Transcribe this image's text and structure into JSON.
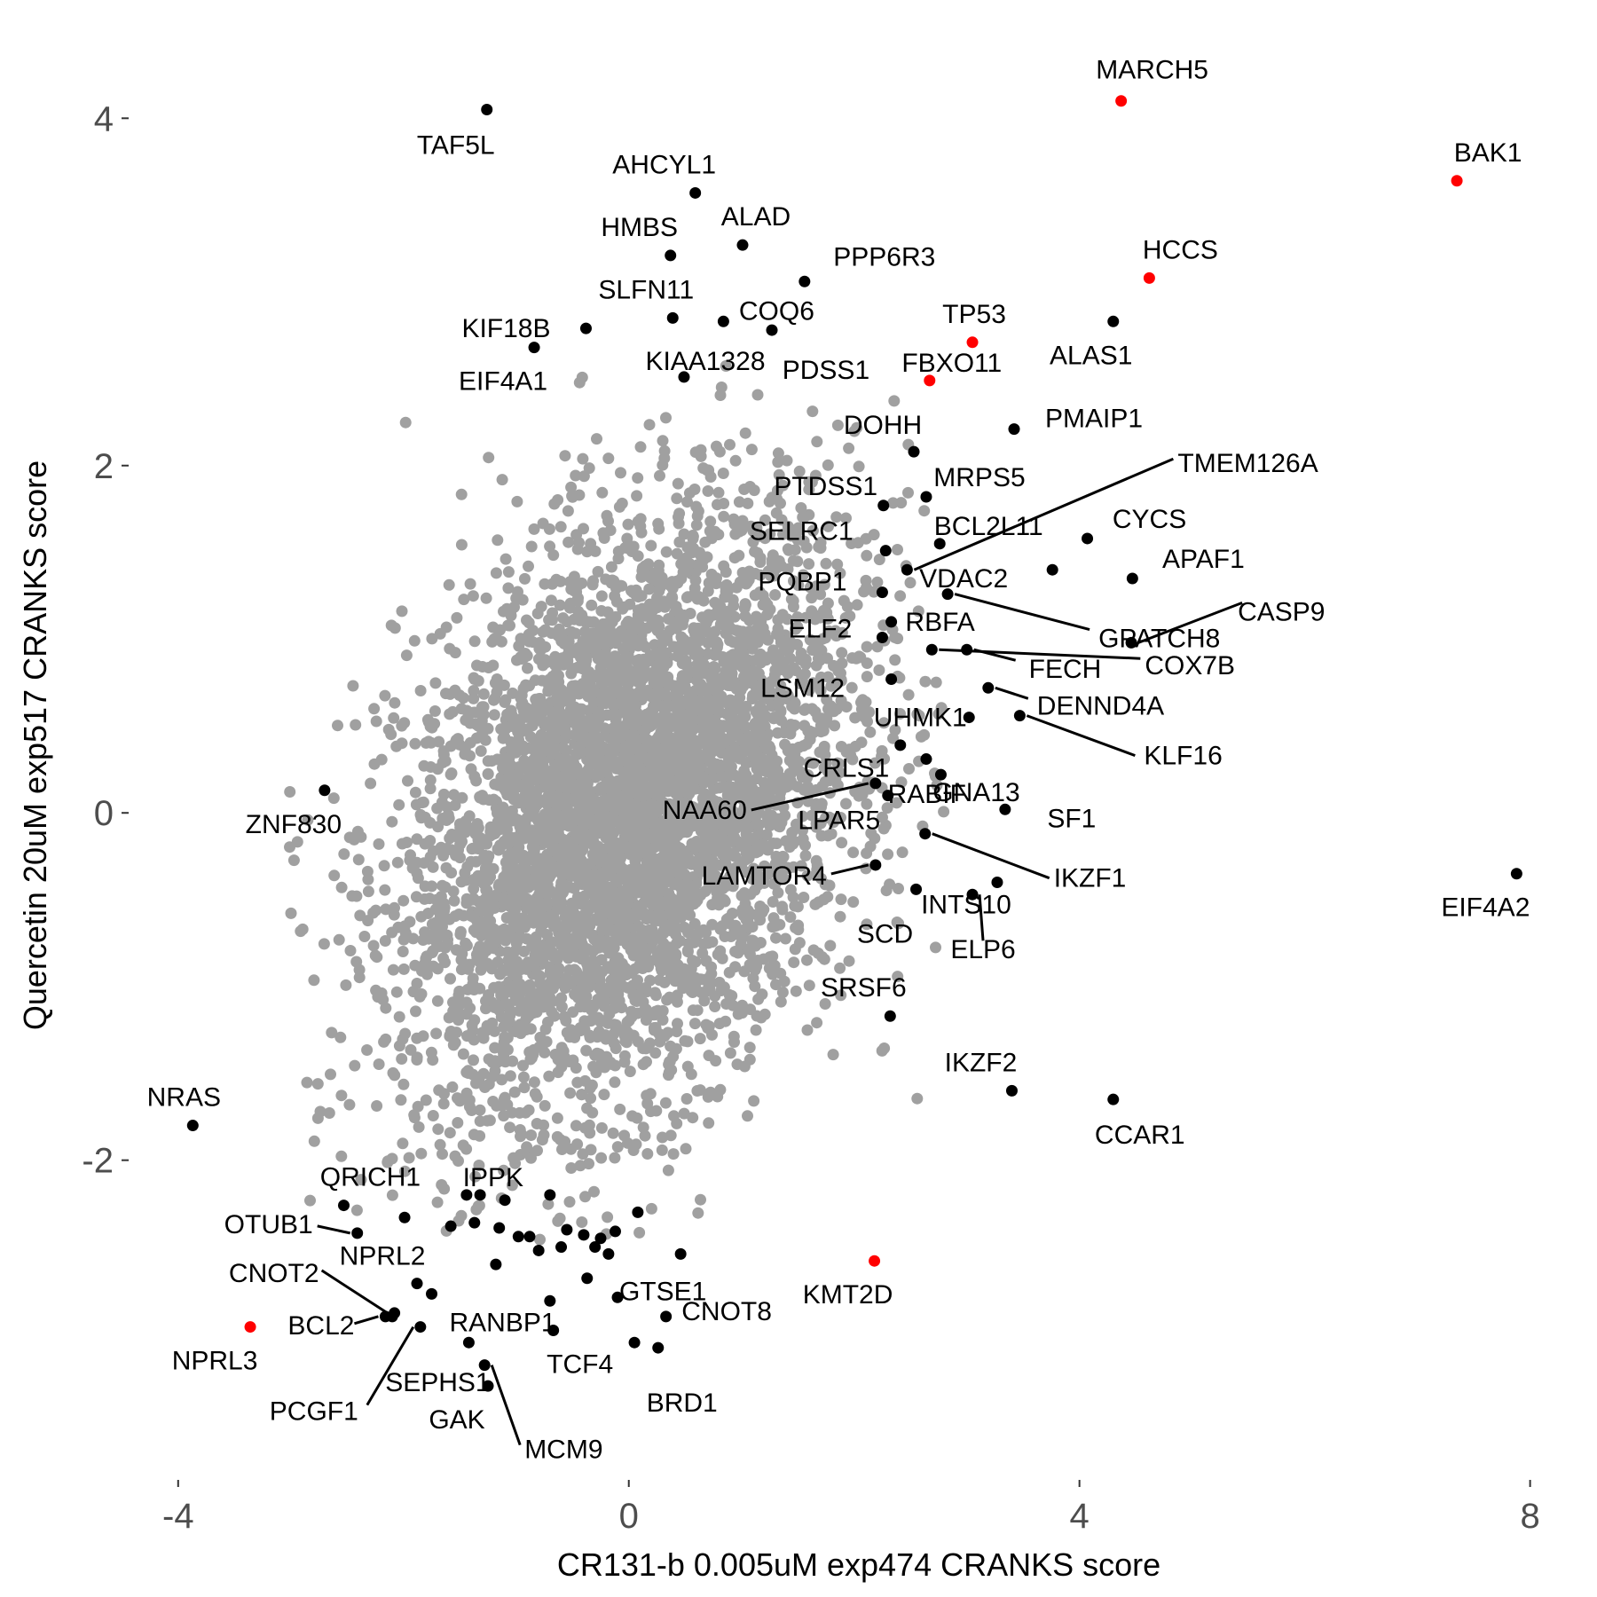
{
  "chart_data": {
    "type": "scatter",
    "xlabel": "CR131-b 0.005uM exp474 CRANKS score",
    "ylabel": "Quercetin 20uM exp517 CRANKS score",
    "xlim": [
      -4.4,
      8.2
    ],
    "ylim": [
      -3.8,
      4.4
    ],
    "x_ticks": [
      -4,
      0,
      4,
      8
    ],
    "y_ticks": [
      -2,
      0,
      2,
      4
    ],
    "grid": false,
    "colors": {
      "background_points": "#a0a0a0",
      "labeled_points": "#000000",
      "highlight_points": "#ff0000"
    },
    "background_cloud": {
      "center": [
        0.0,
        0.0
      ],
      "description_free": true,
      "count": 5000,
      "sd_x": 1.0,
      "sd_y": 0.85,
      "correlation": 0.35
    },
    "labeled_points": [
      {
        "label": "MARCH5",
        "x": 4.37,
        "y": 4.1,
        "highlight": true
      },
      {
        "label": "BAK1",
        "x": 7.35,
        "y": 3.64,
        "highlight": true
      },
      {
        "label": "HCCS",
        "x": 4.62,
        "y": 3.08,
        "highlight": true
      },
      {
        "label": "TP53",
        "x": 3.05,
        "y": 2.71,
        "highlight": true
      },
      {
        "label": "FBXO11",
        "x": 2.67,
        "y": 2.49,
        "highlight": true
      },
      {
        "label": "KMT2D",
        "x": 2.18,
        "y": -2.58,
        "highlight": true
      },
      {
        "label": "NPRL3",
        "x": -3.36,
        "y": -2.96,
        "highlight": true
      },
      {
        "label": "TAF5L",
        "x": -1.26,
        "y": 4.05,
        "highlight": false
      },
      {
        "label": "AHCYL1",
        "x": 0.59,
        "y": 3.57,
        "highlight": false
      },
      {
        "label": "ALAD",
        "x": 1.01,
        "y": 3.27,
        "highlight": false
      },
      {
        "label": "HMBS",
        "x": 0.37,
        "y": 3.21,
        "highlight": false
      },
      {
        "label": "PPP6R3",
        "x": 1.56,
        "y": 3.06,
        "highlight": false
      },
      {
        "label": "SLFN11",
        "x": 0.39,
        "y": 2.85,
        "highlight": false
      },
      {
        "label": "COQ6",
        "x": 0.84,
        "y": 2.83,
        "highlight": false
      },
      {
        "label": "KIF18B",
        "x": -0.38,
        "y": 2.79,
        "highlight": false
      },
      {
        "label": "KIAA1328",
        "x": 1.27,
        "y": 2.78,
        "highlight": false
      },
      {
        "label": "EIF4A1",
        "x": -0.84,
        "y": 2.68,
        "highlight": false
      },
      {
        "label": "PDSS1",
        "x": 0.49,
        "y": 2.51,
        "highlight": false
      },
      {
        "label": "ALAS1",
        "x": 4.3,
        "y": 2.83,
        "highlight": false
      },
      {
        "label": "PMAIP1",
        "x": 3.42,
        "y": 2.21,
        "highlight": false
      },
      {
        "label": "DOHH",
        "x": 2.53,
        "y": 2.08,
        "highlight": false
      },
      {
        "label": "MRPS5",
        "x": 2.64,
        "y": 1.82,
        "highlight": false
      },
      {
        "label": "PTDSS1",
        "x": 2.26,
        "y": 1.77,
        "highlight": false
      },
      {
        "label": "CYCS",
        "x": 4.07,
        "y": 1.58,
        "highlight": false
      },
      {
        "label": "BCL2L11",
        "x": 2.76,
        "y": 1.55,
        "highlight": false
      },
      {
        "label": "SELRC1",
        "x": 2.28,
        "y": 1.51,
        "highlight": false
      },
      {
        "label": "TMEM126A",
        "x": 2.47,
        "y": 1.4,
        "highlight": false
      },
      {
        "label": "VDAC2",
        "x": 3.76,
        "y": 1.4,
        "highlight": false
      },
      {
        "label": "APAF1",
        "x": 4.47,
        "y": 1.35,
        "highlight": false
      },
      {
        "label": "PQBP1",
        "x": 2.25,
        "y": 1.27,
        "highlight": false
      },
      {
        "label": "GPATCH8",
        "x": 2.83,
        "y": 1.26,
        "highlight": false
      },
      {
        "label": "RBFA",
        "x": 2.33,
        "y": 1.1,
        "highlight": false
      },
      {
        "label": "CASP9",
        "x": 4.46,
        "y": 0.98,
        "highlight": false
      },
      {
        "label": "FECH",
        "x": 3.0,
        "y": 0.94,
        "highlight": false
      },
      {
        "label": "ELF2",
        "x": 2.25,
        "y": 1.01,
        "highlight": false
      },
      {
        "label": "COX7B",
        "x": 2.69,
        "y": 0.94,
        "highlight": false
      },
      {
        "label": "DENND4A",
        "x": 3.19,
        "y": 0.72,
        "highlight": false
      },
      {
        "label": "LSM12",
        "x": 2.33,
        "y": 0.77,
        "highlight": false
      },
      {
        "label": "UHMK1",
        "x": 3.02,
        "y": 0.55,
        "highlight": false
      },
      {
        "label": "KLF16",
        "x": 3.47,
        "y": 0.56,
        "highlight": false
      },
      {
        "label": "RABIF",
        "x": 2.41,
        "y": 0.39,
        "highlight": false
      },
      {
        "label": "CRLS1",
        "x": 2.64,
        "y": 0.31,
        "highlight": false
      },
      {
        "label": "NAA60",
        "x": 2.19,
        "y": 0.17,
        "highlight": false
      },
      {
        "label": "GNA13",
        "x": 2.77,
        "y": 0.22,
        "highlight": false
      },
      {
        "label": "SF1",
        "x": 3.34,
        "y": 0.02,
        "highlight": false
      },
      {
        "label": "LPAR5",
        "x": 2.3,
        "y": 0.1,
        "highlight": false
      },
      {
        "label": "IKZF1",
        "x": 2.63,
        "y": -0.12,
        "highlight": false
      },
      {
        "label": "LAMTOR4",
        "x": 2.19,
        "y": -0.3,
        "highlight": false
      },
      {
        "label": "INTS10",
        "x": 3.27,
        "y": -0.4,
        "highlight": false
      },
      {
        "label": "SCD",
        "x": 2.55,
        "y": -0.44,
        "highlight": false
      },
      {
        "label": "ELP6",
        "x": 3.05,
        "y": -0.47,
        "highlight": false
      },
      {
        "label": "EIF4A2",
        "x": 7.88,
        "y": -0.35,
        "highlight": false
      },
      {
        "label": "SRSF6",
        "x": 2.32,
        "y": -1.17,
        "highlight": false
      },
      {
        "label": "IKZF2",
        "x": 3.4,
        "y": -1.6,
        "highlight": false
      },
      {
        "label": "CCAR1",
        "x": 4.3,
        "y": -1.65,
        "highlight": false
      },
      {
        "label": "ZNF830",
        "x": -2.7,
        "y": 0.13,
        "highlight": false
      },
      {
        "label": "NRAS",
        "x": -3.87,
        "y": -1.8,
        "highlight": false
      },
      {
        "label": "QRICH1",
        "x": -2.53,
        "y": -2.26,
        "highlight": false
      },
      {
        "label": "IPPK",
        "x": -1.44,
        "y": -2.2,
        "highlight": false
      },
      {
        "label": "OTUB1",
        "x": -2.41,
        "y": -2.42,
        "highlight": false
      },
      {
        "label": "NPRL2",
        "x": -1.99,
        "y": -2.33,
        "highlight": false
      },
      {
        "label": "CNOT2",
        "x": -2.08,
        "y": -2.88,
        "highlight": false
      },
      {
        "label": "RANBP1",
        "x": -1.75,
        "y": -2.77,
        "highlight": false
      },
      {
        "label": "BCL2",
        "x": -2.16,
        "y": -2.9,
        "highlight": false
      },
      {
        "label": "GTSE1",
        "x": 0.46,
        "y": -2.54,
        "highlight": false
      },
      {
        "label": "PCGF1",
        "x": -1.85,
        "y": -2.96,
        "highlight": false
      },
      {
        "label": "SEPHS1",
        "x": -1.42,
        "y": -3.05,
        "highlight": false
      },
      {
        "label": "TCF4",
        "x": -0.67,
        "y": -2.98,
        "highlight": false
      },
      {
        "label": "CNOT8",
        "x": 0.05,
        "y": -3.05,
        "highlight": false
      },
      {
        "label": "BRD1",
        "x": 0.26,
        "y": -3.08,
        "highlight": false
      },
      {
        "label": "MCM9",
        "x": -1.28,
        "y": -3.18,
        "highlight": false
      },
      {
        "label": "GAK",
        "x": -1.25,
        "y": -3.3,
        "highlight": false
      }
    ],
    "extra_black_points": [
      [
        -1.32,
        -2.2
      ],
      [
        -1.1,
        -2.23
      ],
      [
        -0.7,
        -2.2
      ],
      [
        -1.37,
        -2.36
      ],
      [
        -1.15,
        -2.39
      ],
      [
        -1.58,
        -2.38
      ],
      [
        -0.98,
        -2.44
      ],
      [
        -0.88,
        -2.44
      ],
      [
        -0.55,
        -2.4
      ],
      [
        -0.4,
        -2.43
      ],
      [
        -0.25,
        -2.45
      ],
      [
        -0.12,
        -2.41
      ],
      [
        0.08,
        -2.3
      ],
      [
        -0.3,
        -2.5
      ],
      [
        -0.8,
        -2.52
      ],
      [
        -0.6,
        -2.5
      ],
      [
        -0.18,
        -2.54
      ],
      [
        -0.37,
        -2.68
      ],
      [
        -0.1,
        -2.79
      ],
      [
        -0.7,
        -2.81
      ],
      [
        -1.18,
        -2.6
      ],
      [
        -2.1,
        -2.9
      ],
      [
        0.33,
        -2.9
      ],
      [
        -1.88,
        -2.71
      ]
    ],
    "annotations": []
  }
}
